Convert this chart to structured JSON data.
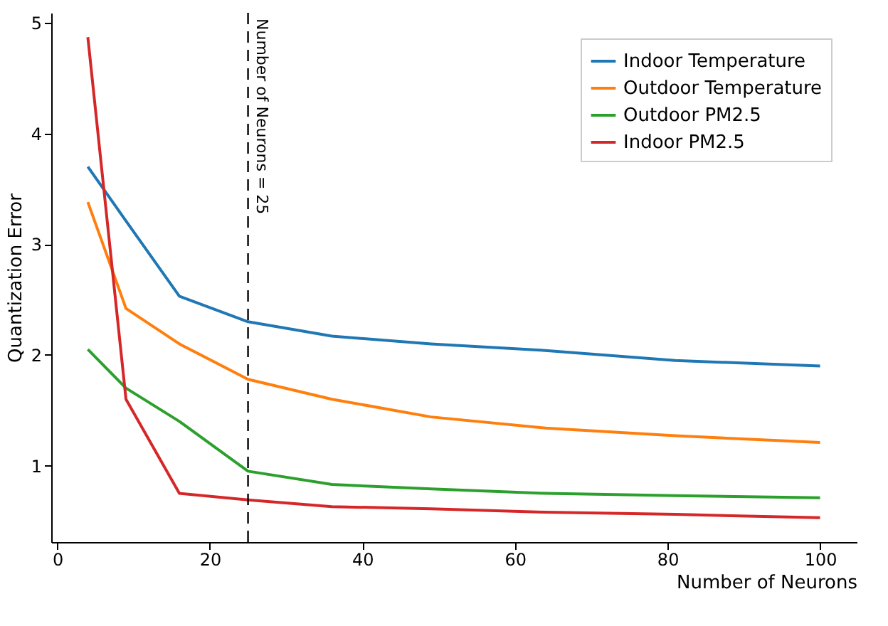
{
  "chart_data": {
    "type": "line",
    "xlabel": "Number of Neurons",
    "ylabel": "Quantization Error",
    "x": [
      4,
      9,
      16,
      25,
      36,
      49,
      64,
      81,
      100
    ],
    "series": [
      {
        "name": "Indoor Temperature",
        "color": "#1f77b4",
        "values": [
          3.7,
          3.21,
          2.53,
          2.3,
          2.17,
          2.1,
          2.04,
          1.95,
          1.9
        ]
      },
      {
        "name": "Outdoor Temperature",
        "color": "#ff7f0e",
        "values": [
          3.38,
          2.42,
          2.1,
          1.78,
          1.6,
          1.44,
          1.34,
          1.27,
          1.21
        ]
      },
      {
        "name": "Outdoor PM2.5",
        "color": "#2ca02c",
        "values": [
          2.05,
          1.7,
          1.4,
          0.95,
          0.83,
          0.79,
          0.75,
          0.73,
          0.71
        ]
      },
      {
        "name": "Indoor PM2.5",
        "color": "#d62728",
        "values": [
          4.87,
          1.6,
          0.75,
          0.69,
          0.63,
          0.61,
          0.58,
          0.56,
          0.53
        ]
      }
    ],
    "xlim": [
      -0.8,
      104.8
    ],
    "ylim": [
      0.31,
      5.09
    ],
    "xticks": [
      0,
      20,
      40,
      60,
      80,
      100
    ],
    "yticks": [
      1,
      2,
      3,
      4,
      5
    ],
    "ref_lines": [
      {
        "axis": "x",
        "value": 25,
        "label": "Number of Neurons = 25",
        "line_style": "dashed",
        "color": "#000000"
      }
    ],
    "legend": "top right",
    "grid": false,
    "marker": "none",
    "line_style": "solid"
  }
}
